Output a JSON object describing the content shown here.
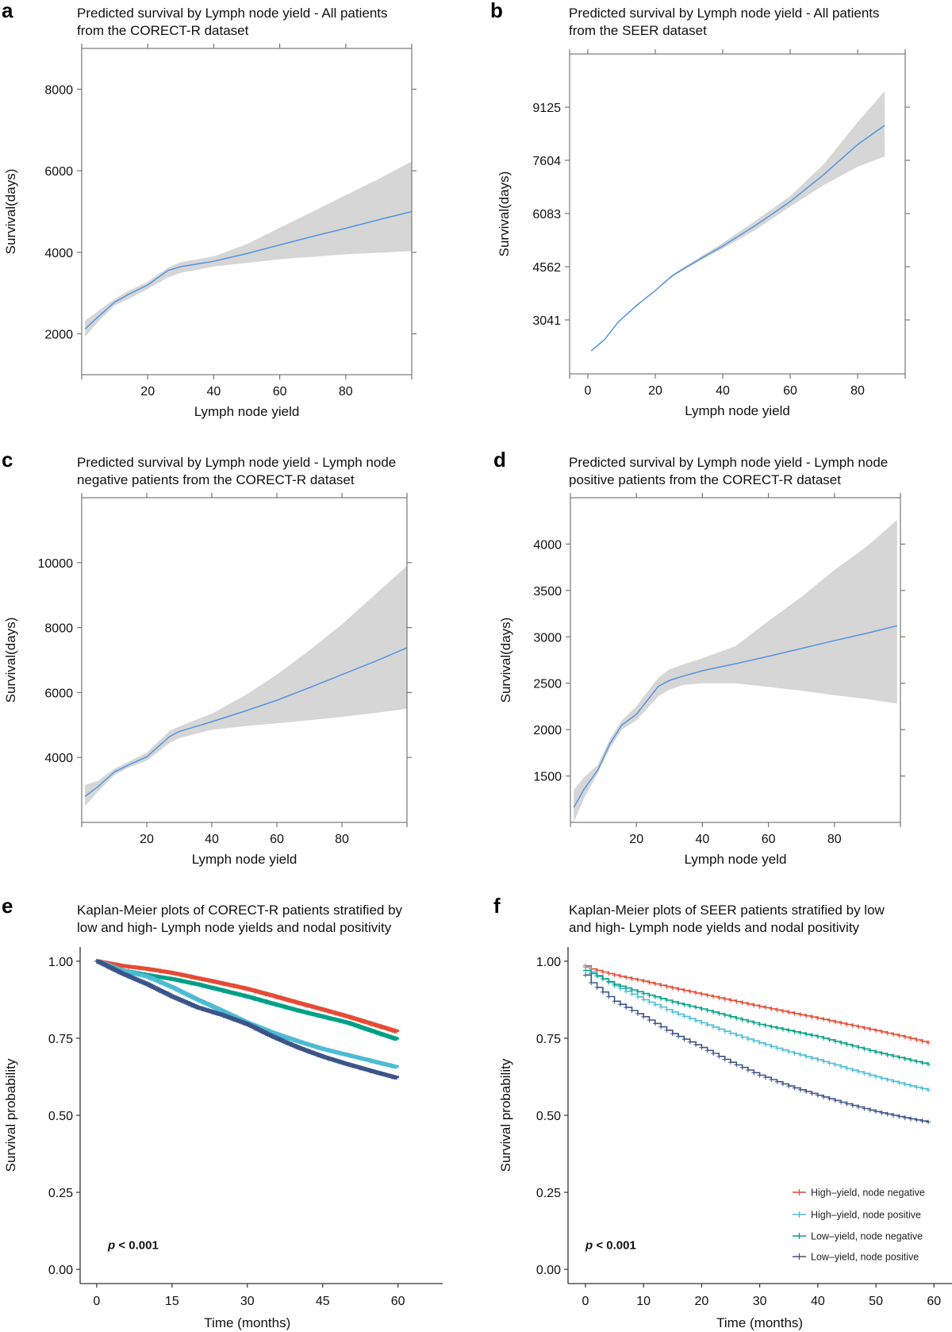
{
  "figure": {
    "panels": [
      "a",
      "b",
      "c",
      "d",
      "e",
      "f"
    ]
  },
  "chart_data": [
    {
      "id": "a",
      "panel_label": "a",
      "type": "line",
      "title_lines": [
        "Predicted survival by Lymph node yield - All patients",
        "from the CORECT-R dataset"
      ],
      "xlabel": "Lymph node yield",
      "ylabel": "Survival(days)",
      "xlim": [
        0,
        100
      ],
      "ylim": [
        1000,
        9000
      ],
      "xticks": [
        20,
        40,
        60,
        80
      ],
      "yticks": [
        2000,
        4000,
        6000,
        8000
      ],
      "grid": false,
      "line_color": "#4a90e2",
      "band_color": "#d6d6d6",
      "x": [
        1,
        5,
        10,
        14,
        20,
        26,
        30,
        40,
        50,
        60,
        70,
        80,
        90,
        100
      ],
      "y": [
        2120,
        2420,
        2780,
        2960,
        3200,
        3550,
        3650,
        3780,
        3970,
        4180,
        4390,
        4590,
        4800,
        5000
      ],
      "lower": [
        1930,
        2300,
        2700,
        2850,
        3100,
        3380,
        3500,
        3650,
        3740,
        3830,
        3890,
        3950,
        3990,
        4030
      ],
      "upper": [
        2330,
        2560,
        2860,
        3050,
        3280,
        3620,
        3760,
        3900,
        4200,
        4600,
        5000,
        5400,
        5800,
        6230
      ]
    },
    {
      "id": "b",
      "panel_label": "b",
      "type": "line",
      "title_lines": [
        "Predicted survival by Lymph node yield - All patients",
        "from the SEER dataset"
      ],
      "xlabel": "Lymph node yield",
      "ylabel": "Survival(days)",
      "xlim": [
        -5.4,
        94.1
      ],
      "ylim": [
        1497,
        10646
      ],
      "xticks": [
        0,
        20,
        40,
        60,
        80
      ],
      "yticks": [
        3041,
        4562,
        6083,
        7604,
        9125
      ],
      "grid": false,
      "line_color": "#4a90e2",
      "band_color": "#d6d6d6",
      "x": [
        1,
        5,
        9,
        15,
        20,
        25,
        29,
        35,
        40,
        50,
        60,
        70,
        80,
        88
      ],
      "y": [
        2156,
        2480,
        2980,
        3500,
        3881,
        4300,
        4540,
        4880,
        5153,
        5760,
        6424,
        7200,
        8058,
        8603
      ],
      "lower": [
        2130,
        2460,
        2960,
        3480,
        3860,
        4270,
        4500,
        4830,
        5080,
        5630,
        6280,
        6900,
        7420,
        7718
      ],
      "upper": [
        2180,
        2500,
        3000,
        3520,
        3900,
        4330,
        4580,
        4940,
        5240,
        5900,
        6580,
        7500,
        8700,
        9579
      ]
    },
    {
      "id": "c",
      "panel_label": "c",
      "type": "line",
      "title_lines": [
        "Predicted survival by Lymph node yield - Lymph node",
        "negative patients from the CORECT-R dataset"
      ],
      "xlabel": "Lymph node yield",
      "ylabel": "Survival(days)",
      "xlim": [
        0,
        100
      ],
      "ylim": [
        2000,
        12000
      ],
      "xticks": [
        20,
        40,
        60,
        80
      ],
      "yticks": [
        4000,
        6000,
        8000,
        10000
      ],
      "grid": false,
      "line_color": "#4a90e2",
      "band_color": "#d6d6d6",
      "x": [
        1,
        5,
        10,
        14.6,
        20,
        27,
        30,
        40,
        50,
        60,
        70,
        80,
        90,
        100
      ],
      "y": [
        2800,
        3100,
        3550,
        3780,
        4020,
        4640,
        4800,
        5100,
        5420,
        5760,
        6150,
        6550,
        6950,
        7380
      ],
      "lower": [
        2500,
        2950,
        3450,
        3700,
        3900,
        4450,
        4600,
        4850,
        4960,
        5050,
        5150,
        5250,
        5370,
        5500
      ],
      "upper": [
        3150,
        3280,
        3650,
        3880,
        4150,
        4820,
        4950,
        5350,
        5900,
        6550,
        7300,
        8100,
        9000,
        9900
      ]
    },
    {
      "id": "d",
      "panel_label": "d",
      "type": "line",
      "title_lines": [
        "Predicted survival by Lymph node yield - Lymph node",
        "positive patients from the CORECT-R dataset"
      ],
      "xlabel": "Lymph node yeld",
      "ylabel": "Survival(days)",
      "xlim": [
        0,
        100
      ],
      "ylim": [
        1000,
        4500
      ],
      "xticks": [
        20,
        40,
        60,
        80
      ],
      "yticks": [
        1500,
        2000,
        2500,
        3000,
        3500,
        4000
      ],
      "grid": false,
      "line_color": "#4a90e2",
      "band_color": "#d6d6d6",
      "x": [
        1,
        4,
        8.3,
        12,
        15.6,
        20,
        26.6,
        30,
        34,
        40,
        50,
        60,
        70,
        80,
        90,
        99
      ],
      "y": [
        1160,
        1350,
        1565,
        1850,
        2050,
        2165,
        2465,
        2530,
        2575,
        2635,
        2710,
        2790,
        2875,
        2960,
        3040,
        3120
      ],
      "lower": [
        1000,
        1250,
        1530,
        1800,
        2000,
        2100,
        2360,
        2430,
        2480,
        2500,
        2500,
        2460,
        2420,
        2370,
        2330,
        2280
      ],
      "upper": [
        1350,
        1480,
        1620,
        1900,
        2100,
        2250,
        2560,
        2650,
        2700,
        2770,
        2900,
        3170,
        3430,
        3720,
        3980,
        4260
      ]
    },
    {
      "id": "e",
      "panel_label": "e",
      "type": "line",
      "title_lines": [
        "Kaplan-Meier plots of CORECT-R patients stratified by",
        "low and high- Lymph node yields and nodal positivity"
      ],
      "xlabel": "Time (months)",
      "ylabel": "Survival probability",
      "xlim": [
        -3.3,
        68.9
      ],
      "ylim": [
        -0.046,
        1.046
      ],
      "xticks": [
        0,
        15,
        30,
        45,
        60
      ],
      "yticks": [
        0.0,
        0.25,
        0.5,
        0.75,
        1.0
      ],
      "ytick_labels": [
        "0.00",
        "0.25",
        "0.50",
        "0.75",
        "1.00"
      ],
      "grid": false,
      "annotation": "p < 0.001",
      "annotation_parts": {
        "italic": "p",
        "rest": " < 0.001"
      },
      "x": [
        0,
        5,
        10,
        15,
        20,
        25,
        30,
        35,
        40,
        45,
        50,
        55,
        60
      ],
      "series": [
        {
          "name": "High–yield, node negative",
          "color": "#E64B35",
          "values": [
            1.0,
            0.985,
            0.975,
            0.962,
            0.945,
            0.928,
            0.91,
            0.888,
            0.865,
            0.843,
            0.82,
            0.795,
            0.77
          ]
        },
        {
          "name": "Low–yield, node negative",
          "color": "#00A087",
          "values": [
            1.0,
            0.97,
            0.955,
            0.942,
            0.925,
            0.905,
            0.885,
            0.862,
            0.84,
            0.82,
            0.8,
            0.772,
            0.745
          ]
        },
        {
          "name": "High–yield, node positive",
          "color": "#4DBBD5",
          "values": [
            1.0,
            0.97,
            0.95,
            0.915,
            0.875,
            0.838,
            0.8,
            0.768,
            0.74,
            0.715,
            0.695,
            0.675,
            0.655
          ]
        },
        {
          "name": "Low–yield, node positive",
          "color": "#3C5488",
          "values": [
            1.0,
            0.96,
            0.925,
            0.885,
            0.85,
            0.825,
            0.795,
            0.755,
            0.72,
            0.69,
            0.665,
            0.642,
            0.62
          ]
        }
      ]
    },
    {
      "id": "f",
      "panel_label": "f",
      "type": "line",
      "title_lines": [
        "Kaplan-Meier plots of SEER patients stratified by low",
        "and high- Lymph node yields and nodal positivity"
      ],
      "xlabel": "Time (months)",
      "ylabel": "Survival probability",
      "xlim": [
        -3.0,
        63.1
      ],
      "ylim": [
        -0.046,
        1.046
      ],
      "xticks": [
        0,
        10,
        20,
        30,
        40,
        50,
        60
      ],
      "yticks": [
        0.0,
        0.25,
        0.5,
        0.75,
        1.0
      ],
      "ytick_labels": [
        "0.00",
        "0.25",
        "0.50",
        "0.75",
        "1.00"
      ],
      "grid": false,
      "annotation": "p < 0.001",
      "annotation_parts": {
        "italic": "p",
        "rest": " < 0.001"
      },
      "legend_position": "bottom-right",
      "x": [
        0,
        1,
        5,
        10,
        15,
        20,
        25,
        30,
        35,
        40,
        45,
        50,
        55,
        59
      ],
      "series": [
        {
          "name": "High–yield, node negative",
          "color": "#E64B35",
          "values": [
            0.985,
            0.975,
            0.955,
            0.935,
            0.913,
            0.893,
            0.873,
            0.853,
            0.834,
            0.815,
            0.795,
            0.775,
            0.754,
            0.735
          ]
        },
        {
          "name": "High–yield, node positive",
          "color": "#4DBBD5",
          "values": [
            0.98,
            0.965,
            0.92,
            0.875,
            0.835,
            0.8,
            0.766,
            0.735,
            0.706,
            0.68,
            0.652,
            0.625,
            0.6,
            0.582
          ]
        },
        {
          "name": "Low–yield, node negative",
          "color": "#00A087",
          "values": [
            0.97,
            0.96,
            0.925,
            0.895,
            0.868,
            0.845,
            0.82,
            0.795,
            0.775,
            0.755,
            0.73,
            0.705,
            0.683,
            0.665
          ]
        },
        {
          "name": "Low–yield, node positive",
          "color": "#3C5488",
          "values": [
            0.955,
            0.93,
            0.87,
            0.82,
            0.765,
            0.72,
            0.672,
            0.63,
            0.595,
            0.565,
            0.537,
            0.512,
            0.492,
            0.478
          ]
        }
      ]
    }
  ]
}
